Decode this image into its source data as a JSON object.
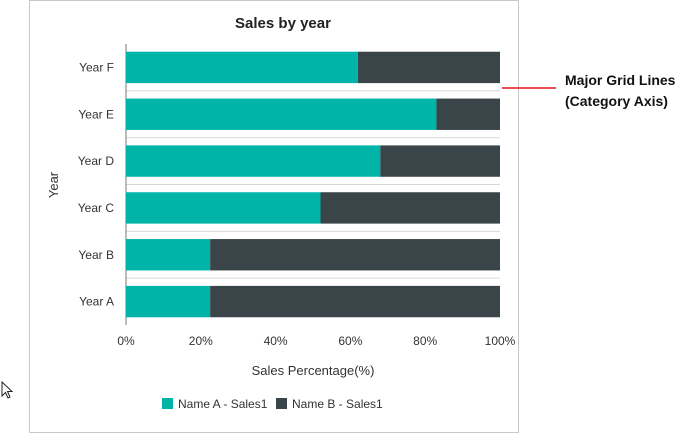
{
  "chart_data": {
    "type": "bar",
    "orientation": "horizontal",
    "stacked": "100%",
    "title": "Sales by year",
    "xlabel": "Sales Percentage(%)",
    "ylabel": "Year",
    "categories": [
      "Year A",
      "Year B",
      "Year C",
      "Year D",
      "Year E",
      "Year F"
    ],
    "series": [
      {
        "name": "Name A - Sales1",
        "color": "#00b5a8",
        "values": [
          22.5,
          22.5,
          52,
          68,
          83,
          62
        ]
      },
      {
        "name": "Name B - Sales1",
        "color": "#394548",
        "values": [
          77.5,
          77.5,
          48,
          32,
          17,
          38
        ]
      }
    ],
    "xlim": [
      0,
      100
    ],
    "xticks": [
      "0%",
      "20%",
      "40%",
      "60%",
      "80%",
      "100%"
    ],
    "grid": "major grid lines on category axis",
    "legend": "bottom"
  },
  "annotation": {
    "line1": "Major Grid Lines",
    "line2": "(Category Axis)",
    "color": "#e0141e"
  }
}
